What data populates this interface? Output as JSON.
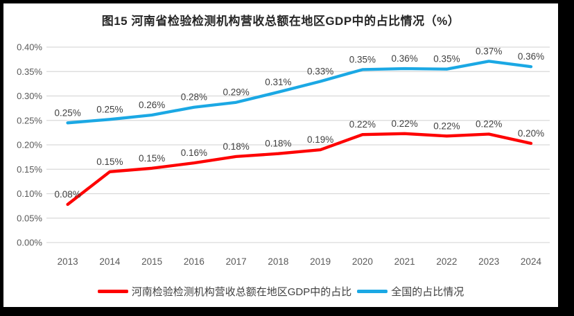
{
  "figure": {
    "caption": "图15  河南省检验检测机构营收总额在地区GDP中的占比情况（%）"
  },
  "chart_data": {
    "type": "line",
    "title": "图15  河南省检验检测机构营收总额在地区GDP中的占比情况（%）",
    "categories": [
      "2013",
      "2014",
      "2015",
      "2016",
      "2017",
      "2018",
      "2019",
      "2020",
      "2021",
      "2022",
      "2023",
      "2024"
    ],
    "xlabel": "",
    "ylabel": "",
    "y_axis": {
      "min": 0,
      "max": 0.4,
      "step": 0.05,
      "unit": "%",
      "ticks": [
        "0.00%",
        "0.05%",
        "0.10%",
        "0.15%",
        "0.20%",
        "0.25%",
        "0.30%",
        "0.35%",
        "0.40%"
      ]
    },
    "grid": true,
    "legend_position": "bottom",
    "series": [
      {
        "name": "河南检验检测机构营收总额在地区GDP中的占比",
        "color": "#FE0000",
        "values": [
          0.08,
          0.15,
          0.15,
          0.16,
          0.18,
          0.18,
          0.19,
          0.22,
          0.22,
          0.22,
          0.22,
          0.2
        ],
        "labels": [
          "0.08%",
          "0.15%",
          "0.15%",
          "0.16%",
          "0.18%",
          "0.18%",
          "0.19%",
          "0.22%",
          "0.22%",
          "0.22%",
          "0.22%",
          "0.20%"
        ],
        "plot_values": [
          0.078,
          0.145,
          0.152,
          0.163,
          0.176,
          0.182,
          0.19,
          0.221,
          0.223,
          0.218,
          0.222,
          0.203
        ]
      },
      {
        "name": "全国的占比情况",
        "color": "#1BA8E4",
        "values": [
          0.25,
          0.25,
          0.26,
          0.28,
          0.29,
          0.31,
          0.33,
          0.35,
          0.36,
          0.35,
          0.37,
          0.36
        ],
        "labels": [
          "0.25%",
          "0.25%",
          "0.26%",
          "0.28%",
          "0.29%",
          "0.31%",
          "0.33%",
          "0.35%",
          "0.36%",
          "0.35%",
          "0.37%",
          "0.36%"
        ],
        "plot_values": [
          0.245,
          0.252,
          0.261,
          0.277,
          0.287,
          0.308,
          0.33,
          0.354,
          0.356,
          0.355,
          0.371,
          0.36
        ]
      }
    ],
    "colors": {
      "grid": "#D9D9D9",
      "axis_text": "#595959",
      "label_text": "#3f3f3f"
    }
  }
}
